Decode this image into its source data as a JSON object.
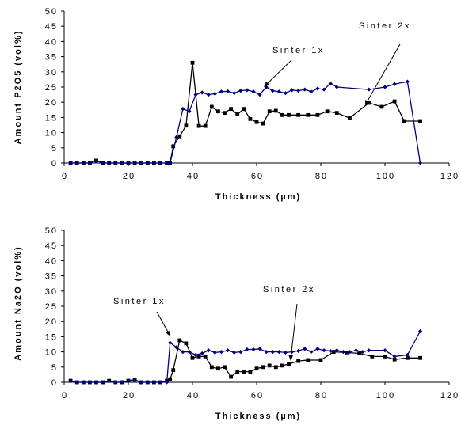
{
  "chart_data": [
    {
      "type": "line",
      "xlabel": "Thickness (µm)",
      "ylabel": "Amount P2O5 (vol%)",
      "xlim": [
        0,
        120
      ],
      "ylim": [
        0,
        50
      ],
      "xticks": [
        0,
        20,
        40,
        60,
        80,
        100,
        120
      ],
      "yticks": [
        0,
        5,
        10,
        15,
        20,
        25,
        30,
        35,
        40,
        45,
        50
      ],
      "grid": false,
      "legend": "none",
      "series": [
        {
          "name": "",
          "color": "#000080",
          "marker": "diamond",
          "x": [
            2,
            4,
            6,
            8,
            10,
            12,
            14,
            16,
            18,
            20,
            22,
            24,
            26,
            28,
            30,
            32,
            33,
            35,
            37,
            39,
            41,
            43,
            45,
            47,
            49,
            51,
            53,
            55,
            57,
            59,
            61,
            63,
            65,
            67,
            69,
            71,
            73,
            75,
            77,
            79,
            81,
            83,
            85,
            95,
            100,
            103,
            107,
            111
          ],
          "y": [
            0,
            0,
            0,
            0,
            0.8,
            0,
            0,
            0,
            0,
            0,
            0,
            0,
            0,
            0,
            0,
            0,
            0,
            8.5,
            17.8,
            17,
            22.5,
            23.2,
            22.5,
            22.8,
            23.5,
            23.6,
            23,
            23.8,
            24,
            23.5,
            22.5,
            25,
            23.8,
            23.5,
            23,
            24,
            23.8,
            24.2,
            23.5,
            24.5,
            24.2,
            26.2,
            25,
            24.2,
            25,
            26,
            26.8,
            0
          ]
        },
        {
          "name": "",
          "color": "#000000",
          "marker": "square",
          "x": [
            2,
            4,
            6,
            8,
            10,
            12,
            14,
            16,
            18,
            20,
            22,
            24,
            26,
            28,
            30,
            32,
            33,
            34,
            36,
            38,
            40,
            42,
            44,
            46,
            48,
            50,
            52,
            54,
            56,
            58,
            60,
            62,
            64,
            66,
            68,
            70,
            73,
            76,
            79,
            82,
            85,
            89,
            95,
            99,
            103,
            106,
            111
          ],
          "y": [
            0,
            0,
            0,
            0,
            0.8,
            0,
            0,
            0,
            0,
            0,
            0,
            0,
            0,
            0,
            0,
            0,
            0,
            5.5,
            8.8,
            12.3,
            33,
            12.2,
            12.2,
            18.5,
            17,
            16.5,
            17.8,
            16,
            17.8,
            14.5,
            13.5,
            13,
            17,
            17.2,
            15.8,
            15.8,
            15.8,
            15.8,
            15.8,
            17,
            16.5,
            14.8,
            19.8,
            18.5,
            20.3,
            13.8,
            13.8
          ]
        }
      ],
      "annotations": [
        "Sinter 1x",
        "Sinter 2x"
      ]
    },
    {
      "type": "line",
      "xlabel": "Thickness (µm)",
      "ylabel": "Amount Na2O (vol%)",
      "xlim": [
        0,
        120
      ],
      "ylim": [
        0,
        50
      ],
      "xticks": [
        0,
        20,
        40,
        60,
        80,
        100,
        120
      ],
      "yticks": [
        0,
        5,
        10,
        15,
        20,
        25,
        30,
        35,
        40,
        45,
        50
      ],
      "grid": false,
      "legend": "none",
      "series": [
        {
          "name": "",
          "color": "#000080",
          "marker": "diamond",
          "x": [
            2,
            4,
            6,
            8,
            10,
            12,
            14,
            16,
            18,
            20,
            22,
            24,
            26,
            28,
            30,
            32,
            33,
            35,
            37,
            39,
            41,
            43,
            45,
            47,
            49,
            51,
            53,
            55,
            57,
            59,
            61,
            63,
            65,
            67,
            69,
            71,
            73,
            75,
            77,
            79,
            81,
            83,
            85,
            87,
            89,
            91,
            93,
            95,
            100,
            103,
            107,
            111
          ],
          "y": [
            0.5,
            0,
            0,
            0,
            0,
            0,
            0.5,
            0,
            0,
            0.5,
            0.8,
            0,
            0,
            0,
            0,
            0,
            13,
            11.5,
            10,
            10,
            9,
            9.5,
            10.5,
            9.8,
            10,
            10.5,
            9.8,
            10,
            10.8,
            10.8,
            11,
            10,
            10,
            10,
            9.8,
            10,
            10.3,
            11,
            10,
            11,
            10.5,
            10.3,
            10.5,
            10,
            10,
            10.5,
            10,
            10.5,
            10.5,
            8.5,
            9,
            16.8
          ]
        },
        {
          "name": "",
          "color": "#000000",
          "marker": "square",
          "x": [
            2,
            4,
            6,
            8,
            10,
            12,
            14,
            16,
            18,
            20,
            22,
            24,
            26,
            28,
            30,
            32,
            33,
            34,
            36,
            38,
            40,
            42,
            44,
            46,
            48,
            50,
            52,
            54,
            56,
            58,
            60,
            62,
            64,
            66,
            68,
            70,
            73,
            76,
            80,
            84,
            88,
            92,
            96,
            100,
            103,
            107,
            111
          ],
          "y": [
            0.5,
            0,
            0,
            0,
            0,
            0,
            0.5,
            0,
            0,
            0.5,
            0.8,
            0,
            0,
            0,
            0,
            0.5,
            1,
            4,
            13.8,
            12.8,
            8,
            8.5,
            8.5,
            5,
            4.5,
            5,
            1.8,
            3.5,
            3.5,
            3.5,
            4.5,
            5,
            5.5,
            5,
            5.5,
            6,
            7,
            7.3,
            7.3,
            10,
            9.8,
            9.5,
            8.5,
            8.5,
            7.5,
            8,
            8
          ]
        }
      ],
      "annotations": [
        "Sinter 1x",
        "Sinter 2x"
      ]
    }
  ]
}
